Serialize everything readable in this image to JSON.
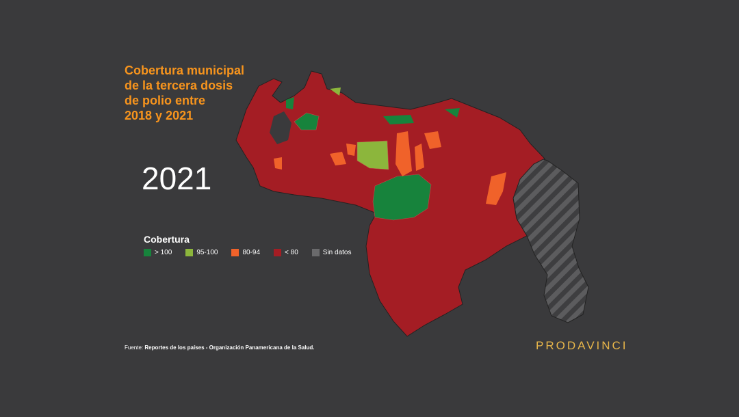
{
  "title": [
    "Cobertura municipal",
    "de la tercera dosis",
    "de polio entre",
    "2018 y 2021"
  ],
  "year": "2021",
  "legend": {
    "title": "Cobertura",
    "items": [
      {
        "label": "> 100",
        "color": "#17833c"
      },
      {
        "label": "95-100",
        "color": "#8cb63c"
      },
      {
        "label": "80-94",
        "color": "#f0622a"
      },
      {
        "label": "< 80",
        "color": "#a41d24"
      },
      {
        "label": "Sin datos",
        "color": "#6a6a6c"
      }
    ]
  },
  "source": {
    "prefix": "Fuente:",
    "text": "Reportes de los países - Organización Panamericana de la Salud."
  },
  "brand": "PRODAVINCI"
}
